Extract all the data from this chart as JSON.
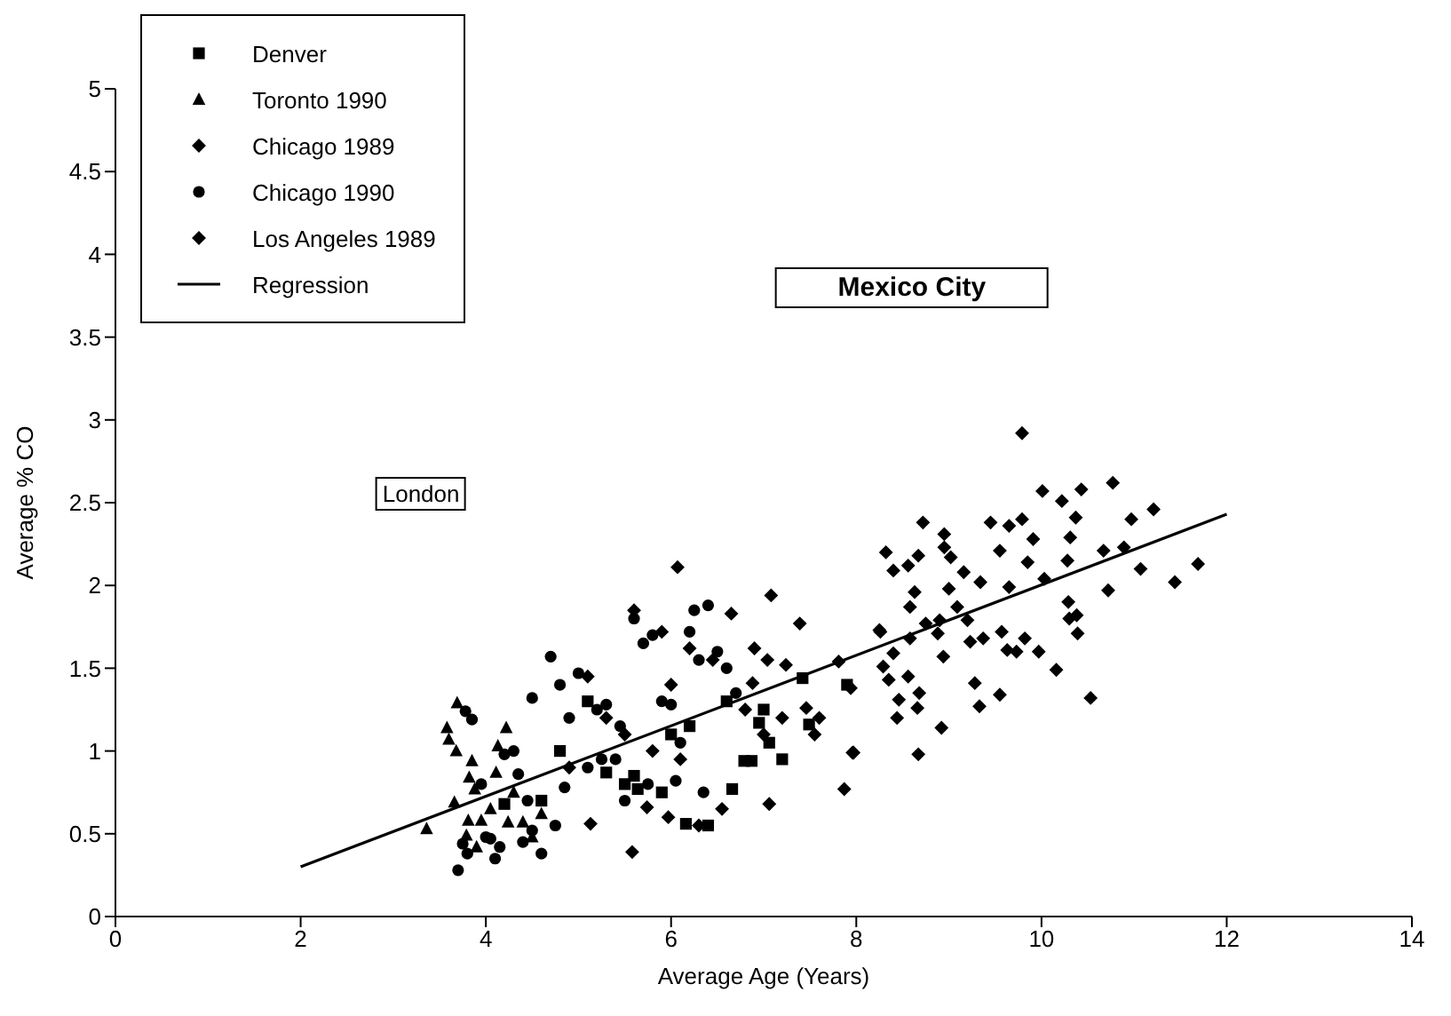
{
  "chart_data": {
    "type": "scatter",
    "xlabel": "Average Age (Years)",
    "ylabel": "Average % CO",
    "xlim": [
      0,
      14
    ],
    "xticks": [
      0,
      2,
      4,
      6,
      8,
      10,
      12,
      14
    ],
    "ylim": [
      0,
      5
    ],
    "yticks": [
      0,
      0.5,
      1,
      1.5,
      2,
      2.5,
      3,
      3.5,
      4,
      4.5,
      5
    ],
    "grid": false,
    "legend": "top left",
    "annotations": [
      "Mexico City",
      "London"
    ],
    "series": [
      {
        "name": "Denver",
        "color": "#000000",
        "marker": "square",
        "x": [
          4.2,
          4.6,
          4.8,
          5.1,
          5.3,
          5.5,
          5.6,
          5.64,
          5.9,
          6.0,
          6.16,
          6.2,
          6.4,
          6.6,
          6.66,
          6.79,
          6.87,
          6.95,
          7.0,
          7.06,
          7.2,
          7.42,
          7.49,
          7.9
        ],
        "values": [
          0.68,
          0.7,
          1.0,
          1.3,
          0.87,
          0.8,
          0.85,
          0.77,
          0.75,
          1.1,
          0.56,
          1.15,
          0.55,
          1.3,
          0.77,
          0.94,
          0.94,
          1.17,
          1.25,
          1.05,
          0.95,
          1.44,
          1.16,
          1.4
        ]
      },
      {
        "name": "Toronto 1990",
        "color": "#000000",
        "marker": "triangle",
        "x": [
          3.36,
          3.58,
          3.6,
          3.66,
          3.68,
          3.69,
          3.79,
          3.81,
          3.82,
          3.85,
          3.88,
          3.9,
          3.95,
          4.05,
          4.11,
          4.13,
          4.22,
          4.24,
          4.3,
          4.4,
          4.5,
          4.6
        ],
        "values": [
          0.53,
          1.14,
          1.07,
          0.69,
          1.0,
          1.29,
          0.49,
          0.58,
          0.84,
          0.94,
          0.77,
          0.42,
          0.58,
          0.65,
          0.87,
          1.03,
          1.14,
          0.57,
          0.75,
          0.57,
          0.48,
          0.62
        ]
      },
      {
        "name": "Chicago 1989",
        "color": "#000000",
        "marker": "diamond",
        "x": [
          4.9,
          5.1,
          5.3,
          5.5,
          5.6,
          5.8,
          5.9,
          6.0,
          6.1,
          6.2,
          6.3,
          6.45,
          6.55,
          6.65,
          6.8,
          6.9,
          7.0,
          7.2,
          7.55,
          7.6
        ],
        "values": [
          0.9,
          1.45,
          1.2,
          1.1,
          1.85,
          1.0,
          1.72,
          1.4,
          0.95,
          1.62,
          0.55,
          1.55,
          0.65,
          1.83,
          1.25,
          1.62,
          1.1,
          1.2,
          1.1,
          1.2
        ]
      },
      {
        "name": "Chicago 1990",
        "color": "#000000",
        "marker": "circle",
        "x": [
          3.7,
          3.75,
          3.78,
          3.8,
          3.85,
          3.95,
          4.0,
          4.05,
          4.1,
          4.15,
          4.2,
          4.3,
          4.35,
          4.4,
          4.45,
          4.5,
          4.5,
          4.6,
          4.7,
          4.75,
          4.8,
          4.85,
          4.9,
          5.0,
          5.1,
          5.2,
          5.25,
          5.3,
          5.4,
          5.45,
          5.5,
          5.6,
          5.7,
          5.75,
          5.8,
          5.9,
          6.0,
          6.05,
          6.1,
          6.2,
          6.25,
          6.3,
          6.35,
          6.4,
          6.5,
          6.6,
          6.7
        ],
        "values": [
          0.28,
          0.44,
          1.24,
          0.38,
          1.19,
          0.8,
          0.48,
          0.47,
          0.35,
          0.42,
          0.98,
          1.0,
          0.86,
          0.45,
          0.7,
          0.52,
          1.32,
          0.38,
          1.57,
          0.55,
          1.4,
          0.78,
          1.2,
          1.47,
          0.9,
          1.25,
          0.95,
          1.28,
          0.95,
          1.15,
          0.7,
          1.8,
          1.65,
          0.8,
          1.7,
          1.3,
          1.28,
          0.82,
          1.05,
          1.72,
          1.85,
          1.55,
          0.75,
          1.88,
          1.6,
          1.5,
          1.35
        ]
      },
      {
        "name": "Los Angeles 1989",
        "color": "#000000",
        "marker": "diamond",
        "x": [
          5.13,
          5.58,
          5.74,
          5.97,
          6.07,
          6.88,
          7.04,
          7.06,
          7.08,
          7.24,
          7.39,
          7.46,
          7.81,
          7.87,
          7.94,
          7.96,
          7.97,
          8.25,
          8.26,
          8.29,
          8.32,
          8.35,
          8.4,
          8.4,
          8.44,
          8.46,
          8.56,
          8.56,
          8.58,
          8.58,
          8.63,
          8.66,
          8.67,
          8.67,
          8.68,
          8.72,
          8.75,
          8.88,
          8.9,
          8.92,
          8.94,
          8.95,
          8.95,
          9.0,
          9.02,
          9.09,
          9.16,
          9.2,
          9.23,
          9.28,
          9.33,
          9.34,
          9.37,
          9.45,
          9.55,
          9.55,
          9.57,
          9.63,
          9.65,
          9.65,
          9.73,
          9.79,
          9.79,
          9.82,
          9.85,
          9.91,
          9.97,
          10.01,
          10.03,
          10.16,
          10.22,
          10.28,
          10.29,
          10.3,
          10.31,
          10.37,
          10.38,
          10.39,
          10.43,
          10.53,
          10.67,
          10.72,
          10.77,
          10.89,
          10.97,
          11.07,
          11.21,
          11.44,
          11.69
        ],
        "values": [
          0.56,
          0.39,
          0.66,
          0.6,
          2.11,
          1.41,
          1.55,
          0.68,
          1.94,
          1.52,
          1.77,
          1.26,
          1.54,
          0.77,
          1.38,
          0.99,
          0.99,
          1.73,
          1.72,
          1.51,
          2.2,
          1.43,
          2.09,
          1.59,
          1.2,
          1.31,
          2.12,
          1.45,
          1.87,
          1.68,
          1.96,
          1.26,
          2.18,
          0.98,
          1.35,
          2.38,
          1.77,
          1.71,
          1.79,
          1.14,
          1.57,
          2.31,
          2.23,
          1.98,
          2.17,
          1.87,
          2.08,
          1.79,
          1.66,
          1.41,
          1.27,
          2.02,
          1.68,
          2.38,
          2.21,
          1.34,
          1.72,
          1.61,
          2.36,
          1.99,
          1.6,
          2.92,
          2.4,
          1.68,
          2.14,
          2.28,
          1.6,
          2.57,
          2.04,
          1.49,
          2.51,
          2.15,
          1.9,
          1.8,
          2.29,
          2.41,
          1.82,
          1.71,
          2.58,
          1.32,
          2.21,
          1.97,
          2.62,
          2.23,
          2.4,
          2.1,
          2.46,
          2.02,
          2.13
        ]
      },
      {
        "name": "Regression",
        "color": "#000000",
        "type": "line",
        "line_style": "solid",
        "marker": "none",
        "x": [
          2,
          12
        ],
        "values": [
          0.3,
          2.43
        ]
      }
    ]
  }
}
